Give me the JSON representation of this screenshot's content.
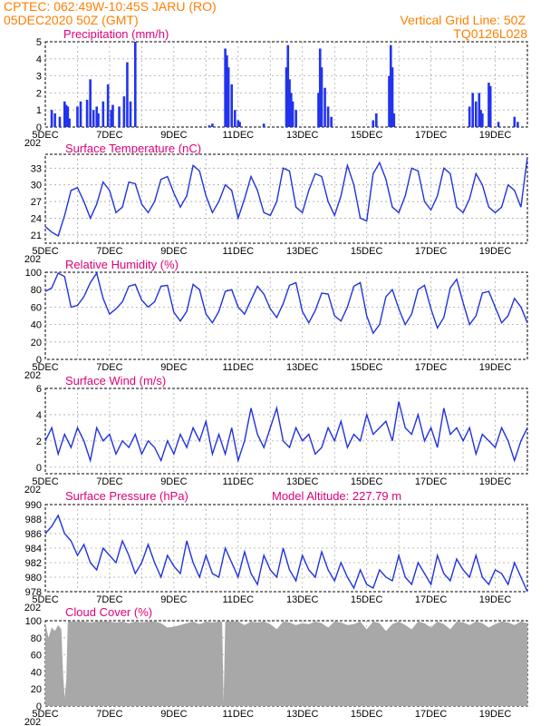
{
  "header": {
    "line1_left": "CPTEC:   062:49W-10:45S  JARU (RO)",
    "line2_left": "05DEC2020 50Z (GMT)",
    "line1_right": "Vertical Grid Line: 50Z",
    "line2_right": "TQ0126L028"
  },
  "x_axis": {
    "tick_labels": [
      "5DEC",
      "7DEC",
      "9DEC",
      "11DEC",
      "13DEC",
      "15DEC",
      "17DEC",
      "19DEC"
    ],
    "tick_days": [
      5,
      7,
      9,
      11,
      13,
      15,
      17,
      19
    ],
    "range_days": [
      5,
      20
    ],
    "under_label": "202"
  },
  "colors": {
    "line": "#2233dd",
    "bars": "#2233ee",
    "cloud": "#a8a8a8",
    "grid": "#aaaaaa",
    "header": "#ff7f00",
    "panel_title": "#e0007a"
  },
  "chart_data": [
    {
      "id": "precip",
      "type": "bar",
      "title": "Precipitation  (mm/h)",
      "ylim": [
        0,
        5
      ],
      "yticks": [
        0,
        1,
        2,
        3,
        4,
        5
      ],
      "x_days": [
        5.2,
        5.3,
        5.45,
        5.6,
        5.65,
        5.7,
        5.75,
        6.0,
        6.1,
        6.3,
        6.4,
        6.5,
        6.6,
        6.65,
        6.8,
        6.95,
        7.05,
        7.1,
        7.3,
        7.45,
        7.55,
        7.65,
        7.8,
        10.1,
        10.2,
        10.6,
        10.65,
        10.7,
        10.8,
        10.9,
        11.0,
        11.05,
        11.8,
        12.5,
        12.55,
        12.6,
        12.65,
        12.7,
        12.8,
        13.5,
        13.55,
        13.6,
        13.7,
        13.8,
        13.9,
        15.2,
        15.3,
        15.7,
        15.75,
        15.8,
        15.85,
        18.2,
        18.3,
        18.4,
        18.5,
        18.55,
        18.6,
        18.8,
        18.85,
        19.1,
        19.6,
        19.7
      ],
      "values": [
        1.0,
        0.8,
        0.6,
        1.5,
        1.3,
        1.2,
        0.5,
        1.2,
        1.5,
        1.6,
        2.8,
        1.0,
        1.2,
        0.8,
        1.5,
        2.5,
        1.0,
        1.3,
        1.2,
        1.8,
        3.8,
        1.5,
        5.0,
        0.1,
        0.2,
        4.6,
        4.2,
        3.5,
        2.5,
        1.0,
        0.4,
        0.3,
        0.2,
        3.5,
        4.8,
        2.8,
        2.0,
        1.5,
        1.0,
        2.0,
        4.6,
        3.5,
        2.3,
        1.2,
        0.6,
        0.4,
        0.8,
        3.0,
        4.8,
        3.5,
        0.8,
        1.2,
        2.0,
        1.5,
        2.0,
        1.0,
        0.8,
        2.6,
        2.4,
        0.3,
        0.6,
        0.3
      ]
    },
    {
      "id": "temp",
      "type": "line",
      "title": "Surface Temperature (nC)",
      "ylim": [
        19.5,
        35.5
      ],
      "yticks": [
        21,
        24,
        27,
        30,
        33
      ],
      "x_days": [
        5.0,
        5.2,
        5.4,
        5.6,
        5.8,
        6.0,
        6.2,
        6.4,
        6.6,
        6.8,
        7.0,
        7.2,
        7.4,
        7.6,
        7.8,
        8.0,
        8.2,
        8.4,
        8.6,
        8.8,
        9.0,
        9.2,
        9.4,
        9.6,
        9.8,
        10.0,
        10.2,
        10.4,
        10.6,
        10.8,
        11.0,
        11.2,
        11.4,
        11.6,
        11.8,
        12.0,
        12.2,
        12.4,
        12.6,
        12.8,
        13.0,
        13.2,
        13.4,
        13.6,
        13.8,
        14.0,
        14.2,
        14.4,
        14.6,
        14.8,
        15.0,
        15.2,
        15.4,
        15.6,
        15.8,
        16.0,
        16.2,
        16.4,
        16.6,
        16.8,
        17.0,
        17.2,
        17.4,
        17.6,
        17.8,
        18.0,
        18.2,
        18.4,
        18.6,
        18.8,
        19.0,
        19.2,
        19.4,
        19.6,
        19.8,
        20.0
      ],
      "values": [
        22.5,
        21.5,
        20.8,
        24.5,
        29.0,
        29.5,
        27.0,
        24.0,
        26.5,
        30.5,
        29.0,
        25.0,
        26.0,
        30.5,
        30.2,
        26.5,
        25.0,
        27.0,
        31.0,
        31.5,
        28.5,
        26.0,
        28.0,
        33.5,
        32.5,
        28.0,
        25.0,
        27.0,
        30.0,
        29.0,
        24.0,
        27.5,
        31.5,
        29.0,
        25.0,
        24.5,
        27.0,
        33.0,
        32.5,
        26.0,
        25.0,
        29.0,
        32.0,
        31.5,
        27.0,
        24.5,
        28.0,
        33.5,
        30.0,
        24.0,
        23.5,
        32.0,
        34.0,
        31.0,
        26.0,
        25.0,
        28.0,
        33.0,
        32.5,
        27.0,
        25.5,
        28.0,
        33.0,
        32.0,
        26.0,
        25.0,
        27.5,
        32.0,
        30.0,
        26.0,
        25.0,
        26.0,
        30.0,
        29.0,
        26.0,
        35.0
      ]
    },
    {
      "id": "rh",
      "type": "line",
      "title": "Relative Humidity (%)",
      "ylim": [
        0,
        100
      ],
      "yticks": [
        0,
        20,
        40,
        60,
        80,
        100
      ],
      "x_days": [
        5.0,
        5.2,
        5.4,
        5.6,
        5.8,
        6.0,
        6.2,
        6.4,
        6.6,
        6.8,
        7.0,
        7.2,
        7.4,
        7.6,
        7.8,
        8.0,
        8.2,
        8.4,
        8.6,
        8.8,
        9.0,
        9.2,
        9.4,
        9.6,
        9.8,
        10.0,
        10.2,
        10.4,
        10.6,
        10.8,
        11.0,
        11.2,
        11.4,
        11.6,
        11.8,
        12.0,
        12.2,
        12.4,
        12.6,
        12.8,
        13.0,
        13.2,
        13.4,
        13.6,
        13.8,
        14.0,
        14.2,
        14.4,
        14.6,
        14.8,
        15.0,
        15.2,
        15.4,
        15.6,
        15.8,
        16.0,
        16.2,
        16.4,
        16.6,
        16.8,
        17.0,
        17.2,
        17.4,
        17.6,
        17.8,
        18.0,
        18.2,
        18.4,
        18.6,
        18.8,
        19.0,
        19.2,
        19.4,
        19.6,
        19.8,
        20.0
      ],
      "values": [
        78,
        82,
        99,
        95,
        60,
        62,
        72,
        88,
        99,
        70,
        52,
        58,
        66,
        84,
        86,
        68,
        60,
        66,
        84,
        85,
        54,
        44,
        55,
        86,
        80,
        52,
        42,
        55,
        78,
        80,
        60,
        52,
        68,
        84,
        75,
        58,
        48,
        64,
        85,
        88,
        55,
        42,
        56,
        76,
        75,
        50,
        44,
        60,
        84,
        88,
        50,
        30,
        40,
        72,
        80,
        58,
        40,
        52,
        80,
        85,
        58,
        36,
        48,
        82,
        92,
        65,
        40,
        50,
        76,
        78,
        60,
        42,
        50,
        70,
        60,
        42
      ]
    },
    {
      "id": "wind",
      "type": "line",
      "title": "Surface Wind (m/s)",
      "ylim": [
        -0.5,
        6
      ],
      "yticks": [
        0,
        2,
        4,
        6
      ],
      "x_days": [
        5.0,
        5.2,
        5.4,
        5.6,
        5.8,
        6.0,
        6.2,
        6.4,
        6.6,
        6.8,
        7.0,
        7.2,
        7.4,
        7.6,
        7.8,
        8.0,
        8.2,
        8.4,
        8.6,
        8.8,
        9.0,
        9.2,
        9.4,
        9.6,
        9.8,
        10.0,
        10.2,
        10.4,
        10.6,
        10.8,
        11.0,
        11.2,
        11.4,
        11.6,
        11.8,
        12.0,
        12.2,
        12.4,
        12.6,
        12.8,
        13.0,
        13.2,
        13.4,
        13.6,
        13.8,
        14.0,
        14.2,
        14.4,
        14.6,
        14.8,
        15.0,
        15.2,
        15.4,
        15.6,
        15.8,
        16.0,
        16.2,
        16.4,
        16.6,
        16.8,
        17.0,
        17.2,
        17.4,
        17.6,
        17.8,
        18.0,
        18.2,
        18.4,
        18.6,
        18.8,
        19.0,
        19.2,
        19.4,
        19.6,
        19.8,
        20.0
      ],
      "values": [
        2.0,
        3.0,
        1.0,
        2.5,
        1.5,
        3.0,
        2.0,
        0.5,
        3.0,
        2.0,
        2.5,
        1.0,
        2.0,
        1.5,
        2.5,
        1.0,
        2.0,
        1.5,
        0.5,
        2.0,
        1.0,
        2.5,
        1.5,
        3.0,
        2.0,
        3.5,
        1.0,
        2.5,
        1.0,
        3.0,
        0.5,
        2.0,
        4.5,
        2.5,
        1.5,
        3.0,
        4.5,
        2.0,
        1.5,
        3.0,
        2.0,
        2.5,
        1.0,
        1.5,
        3.0,
        2.0,
        3.5,
        1.5,
        2.5,
        2.0,
        4.0,
        2.5,
        3.0,
        3.5,
        2.0,
        5.0,
        3.0,
        2.5,
        4.0,
        2.0,
        3.0,
        1.5,
        4.5,
        2.5,
        3.0,
        2.0,
        3.0,
        1.0,
        2.5,
        2.0,
        1.5,
        3.0,
        2.0,
        0.5,
        2.0,
        3.0
      ]
    },
    {
      "id": "pressure",
      "type": "line",
      "title": "Surface Pressure (hPa)",
      "annotation": "Model Altitude: 227.79  m",
      "ylim": [
        978,
        990
      ],
      "yticks": [
        978,
        980,
        982,
        984,
        986,
        988,
        990
      ],
      "x_days": [
        5.0,
        5.2,
        5.4,
        5.6,
        5.8,
        6.0,
        6.2,
        6.4,
        6.6,
        6.8,
        7.0,
        7.2,
        7.4,
        7.6,
        7.8,
        8.0,
        8.2,
        8.4,
        8.6,
        8.8,
        9.0,
        9.2,
        9.4,
        9.6,
        9.8,
        10.0,
        10.2,
        10.4,
        10.6,
        10.8,
        11.0,
        11.2,
        11.4,
        11.6,
        11.8,
        12.0,
        12.2,
        12.4,
        12.6,
        12.8,
        13.0,
        13.2,
        13.4,
        13.6,
        13.8,
        14.0,
        14.2,
        14.4,
        14.6,
        14.8,
        15.0,
        15.2,
        15.4,
        15.6,
        15.8,
        16.0,
        16.2,
        16.4,
        16.6,
        16.8,
        17.0,
        17.2,
        17.4,
        17.6,
        17.8,
        18.0,
        18.2,
        18.4,
        18.6,
        18.8,
        19.0,
        19.2,
        19.4,
        19.6,
        19.8,
        20.0
      ],
      "values": [
        986.0,
        987.0,
        988.5,
        986.0,
        985.0,
        983.0,
        984.5,
        982.0,
        981.0,
        984.0,
        983.0,
        982.0,
        985.0,
        983.0,
        980.5,
        982.0,
        984.5,
        982.0,
        980.0,
        983.0,
        981.5,
        980.5,
        985.0,
        982.0,
        980.0,
        983.0,
        980.5,
        980.0,
        984.0,
        982.0,
        980.0,
        983.5,
        980.5,
        979.0,
        983.0,
        981.0,
        980.0,
        984.0,
        981.0,
        979.5,
        983.0,
        981.0,
        980.0,
        983.5,
        981.0,
        979.5,
        982.0,
        980.0,
        978.5,
        981.0,
        979.0,
        978.5,
        981.0,
        980.0,
        979.5,
        983.0,
        980.0,
        979.0,
        982.0,
        980.5,
        979.0,
        983.0,
        980.5,
        979.5,
        982.5,
        981.0,
        980.0,
        983.0,
        980.0,
        979.0,
        981.0,
        980.5,
        979.0,
        982.0,
        980.0,
        978.0
      ]
    },
    {
      "id": "cloud",
      "type": "area",
      "title": "Cloud Cover (%)",
      "ylim": [
        0,
        100
      ],
      "yticks": [
        0,
        20,
        40,
        60,
        80,
        100
      ],
      "x_days": [
        5.0,
        5.1,
        5.2,
        5.3,
        5.4,
        5.5,
        5.55,
        5.6,
        5.65,
        5.7,
        5.8,
        6.0,
        6.2,
        6.4,
        6.6,
        6.8,
        7.0,
        7.2,
        7.4,
        7.6,
        7.8,
        8.0,
        8.2,
        8.4,
        8.6,
        8.8,
        9.0,
        9.2,
        9.4,
        9.6,
        9.8,
        10.0,
        10.2,
        10.4,
        10.5,
        10.55,
        10.6,
        10.7,
        10.8,
        11.0,
        11.2,
        11.4,
        11.6,
        11.8,
        12.0,
        12.2,
        12.4,
        12.6,
        12.8,
        13.0,
        13.2,
        13.4,
        13.6,
        13.8,
        14.0,
        14.2,
        14.4,
        14.6,
        14.8,
        15.0,
        15.2,
        15.4,
        15.6,
        15.8,
        16.0,
        16.2,
        16.4,
        16.6,
        16.8,
        17.0,
        17.2,
        17.4,
        17.6,
        17.8,
        18.0,
        18.2,
        18.4,
        18.6,
        18.8,
        19.0,
        19.2,
        19.4,
        19.6,
        19.8,
        20.0
      ],
      "values": [
        98,
        80,
        92,
        88,
        95,
        90,
        40,
        10,
        30,
        99,
        99,
        99,
        99,
        98,
        99,
        99,
        99,
        98,
        99,
        97,
        99,
        98,
        99,
        99,
        97,
        92,
        93,
        95,
        97,
        99,
        96,
        99,
        98,
        99,
        99,
        5,
        99,
        99,
        99,
        99,
        95,
        99,
        98,
        99,
        96,
        90,
        99,
        98,
        95,
        97,
        96,
        99,
        97,
        92,
        99,
        98,
        95,
        96,
        99,
        90,
        99,
        97,
        88,
        96,
        99,
        95,
        90,
        99,
        97,
        92,
        99,
        96,
        90,
        99,
        98,
        95,
        99,
        97,
        92,
        96,
        99,
        98,
        95,
        99,
        97
      ]
    }
  ]
}
